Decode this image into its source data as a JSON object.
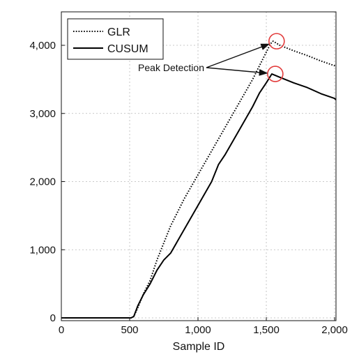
{
  "chart_data": {
    "type": "line",
    "xlabel": "Sample ID",
    "ylabel": "",
    "xlim": [
      0,
      2000
    ],
    "ylim": [
      0,
      4000
    ],
    "xticks": [
      0,
      500,
      1000,
      1500,
      2000
    ],
    "xtick_labels": [
      "0",
      "500",
      "1,000",
      "1,500",
      "2,000"
    ],
    "yticks": [
      0,
      1000,
      2000,
      3000,
      4000
    ],
    "ytick_labels": [
      "0",
      "1,000",
      "2,000",
      "3,000",
      "4,000"
    ],
    "grid": true,
    "legend_position": "top-left",
    "series": [
      {
        "name": "GLR",
        "style": "dotted",
        "color": "#000000",
        "x": [
          0,
          510,
          530,
          560,
          600,
          650,
          700,
          750,
          800,
          900,
          1000,
          1100,
          1200,
          1300,
          1400,
          1450,
          1500,
          1530,
          1550,
          1600,
          1700,
          1800,
          1900,
          2000,
          2010
        ],
        "y": [
          0,
          0,
          20,
          150,
          350,
          550,
          850,
          1100,
          1350,
          1750,
          2100,
          2450,
          2800,
          3150,
          3500,
          3700,
          3900,
          4020,
          4060,
          4000,
          3920,
          3850,
          3770,
          3700,
          3690
        ]
      },
      {
        "name": "CUSUM",
        "style": "solid",
        "color": "#000000",
        "x": [
          0,
          510,
          530,
          560,
          600,
          650,
          700,
          750,
          800,
          900,
          1000,
          1100,
          1150,
          1200,
          1300,
          1400,
          1450,
          1500,
          1540,
          1600,
          1700,
          1800,
          1900,
          2000,
          2010
        ],
        "y": [
          0,
          0,
          20,
          180,
          340,
          500,
          700,
          850,
          950,
          1300,
          1650,
          2000,
          2250,
          2400,
          2750,
          3100,
          3300,
          3450,
          3580,
          3530,
          3450,
          3380,
          3290,
          3220,
          3200
        ]
      }
    ],
    "annotations": [
      {
        "text": "Peak Detection",
        "targets": [
          [
            1550,
            4060
          ],
          [
            1540,
            3580
          ]
        ]
      }
    ]
  }
}
